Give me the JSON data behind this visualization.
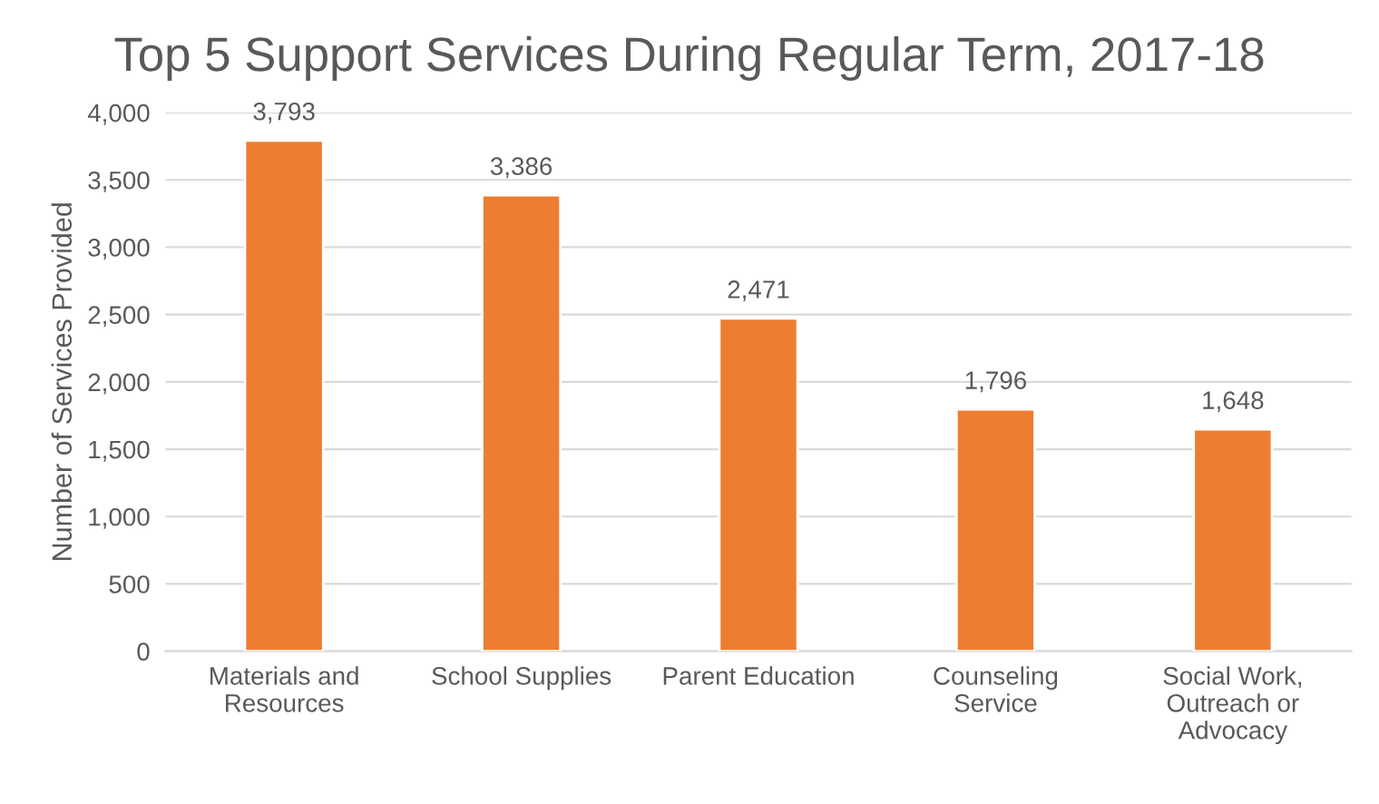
{
  "chart_data": {
    "type": "bar",
    "title": "Top 5 Support Services During Regular Term, 2017-18",
    "ylabel": "Number of Services Provided",
    "categories": [
      "Materials and\nResources",
      "School Supplies",
      "Parent Education",
      "Counseling\nService",
      "Social Work,\nOutreach or\nAdvocacy"
    ],
    "values": [
      3793,
      3386,
      2471,
      1796,
      1648
    ],
    "value_labels": [
      "3,793",
      "3,386",
      "2,471",
      "1,796",
      "1,648"
    ],
    "color": "#ed7d31",
    "ylim": [
      0,
      4000
    ],
    "yticks": [
      0,
      500,
      {
        "value": 1000,
        "label": "1,000"
      },
      {
        "value": 1500,
        "label": "1,500"
      },
      {
        "value": 2000,
        "label": "2,000"
      },
      {
        "value": 2500,
        "label": "2,500"
      },
      {
        "value": 3000,
        "label": "3,000"
      },
      {
        "value": 3500,
        "label": "3,500"
      },
      {
        "value": 4000,
        "label": "4,000"
      }
    ],
    "grid": "y"
  }
}
